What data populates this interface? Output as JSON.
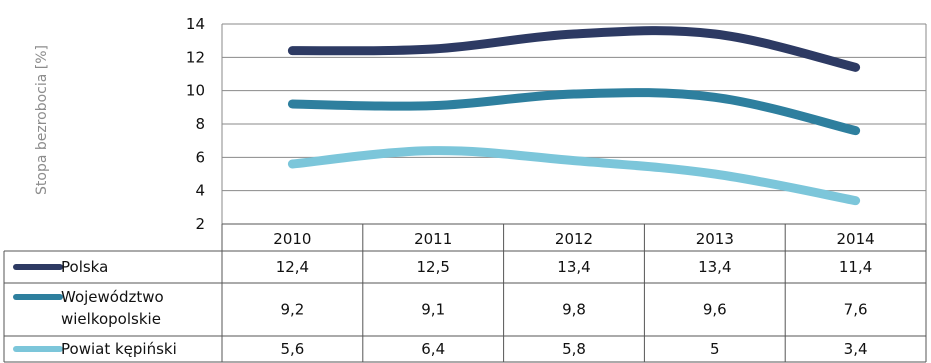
{
  "chart_data": {
    "type": "line",
    "ylabel": "Stopa bezrobocia [%]",
    "ylim": [
      2,
      14
    ],
    "yticks": [
      "14",
      "12",
      "10",
      "8",
      "6",
      "4",
      "2"
    ],
    "grid": true,
    "legend_position": "table-left",
    "categories": [
      "2010",
      "2011",
      "2012",
      "2013",
      "2014"
    ],
    "series": [
      {
        "name": "Polska",
        "name_lines": [
          "Polska"
        ],
        "color": "#2d3a63",
        "values": [
          12.4,
          12.5,
          13.4,
          13.4,
          11.4
        ],
        "labels": [
          "12,4",
          "12,5",
          "13,4",
          "13,4",
          "11,4"
        ]
      },
      {
        "name": "Województwo wielkopolskie",
        "name_lines": [
          "Województwo",
          "wielkopolskie"
        ],
        "color": "#2e7f9e",
        "values": [
          9.2,
          9.1,
          9.8,
          9.6,
          7.6
        ],
        "labels": [
          "9,2",
          "9,1",
          "9,8",
          "9,6",
          "7,6"
        ]
      },
      {
        "name": "Powiat kępiński",
        "name_lines": [
          "Powiat kępiński"
        ],
        "color": "#7cc6da",
        "values": [
          5.6,
          6.4,
          5.8,
          5.0,
          3.4
        ],
        "labels": [
          "5,6",
          "6,4",
          "5,8",
          "5",
          "3,4"
        ]
      }
    ]
  }
}
